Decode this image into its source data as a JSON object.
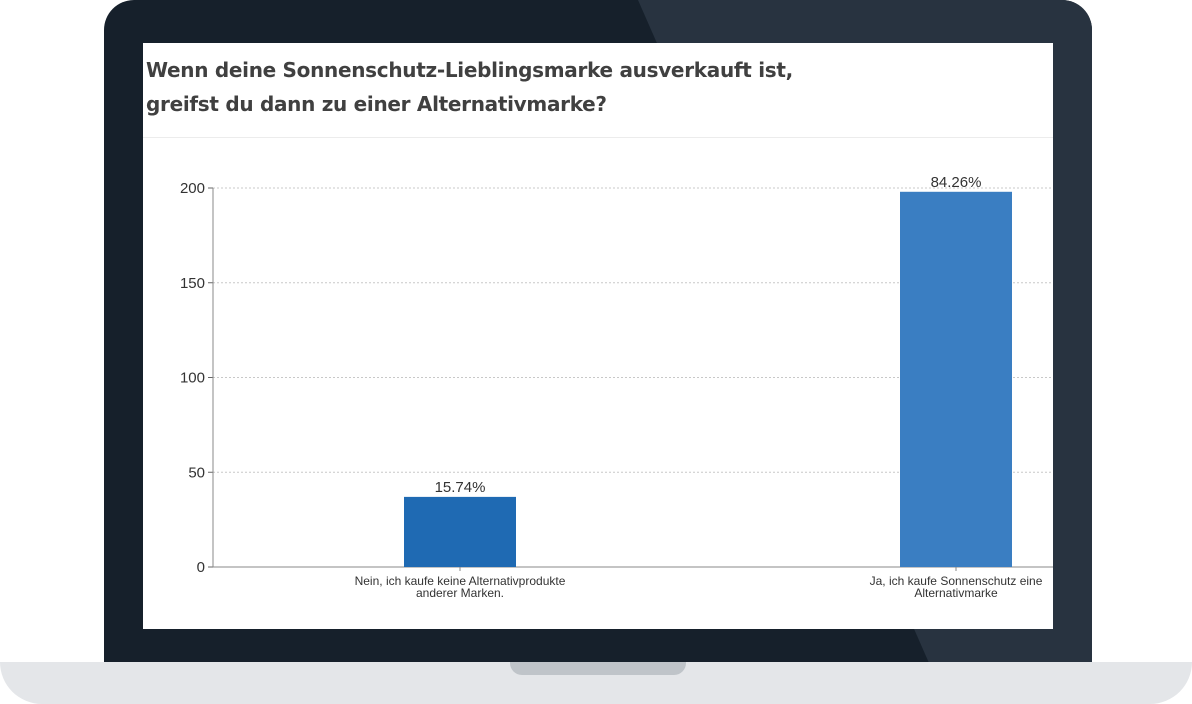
{
  "chart_data": {
    "type": "bar",
    "title": "Wenn deine Sonnenschutz-Lieblingsmarke ausverkauft ist, greifst du dann zu einer Alternativmarke?",
    "categories": [
      [
        "Nein, ich kaufe keine Alternativprodukte",
        "anderer Marken."
      ],
      [
        "Ja, ich kaufe Sonnenschutz eine",
        "Alternativmarke"
      ]
    ],
    "values": [
      37,
      198
    ],
    "data_labels": [
      "15.74%",
      "84.26%"
    ],
    "bar_colors": [
      "#1f6ab3",
      "#3a7ec2"
    ],
    "yticks": [
      "0",
      "50",
      "100",
      "150",
      "200"
    ],
    "ylim": [
      0,
      200
    ],
    "grid": true,
    "xlabel": "",
    "ylabel": ""
  }
}
